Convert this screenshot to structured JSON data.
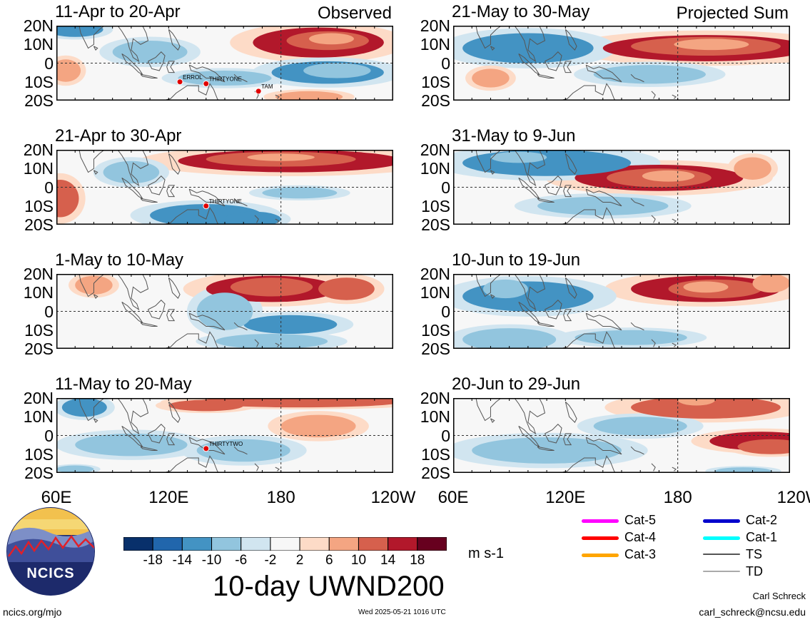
{
  "panels": [
    {
      "title": "11-Apr to 20-Apr",
      "tag": "Observed",
      "storms": [
        {
          "name": "ERROL",
          "lon": 126,
          "lat": -10
        },
        {
          "name": "THIRTYONE",
          "lon": 140,
          "lat": -11
        },
        {
          "name": "TAM",
          "lon": 168,
          "lat": -15
        }
      ]
    },
    {
      "title": "21-Apr to 30-Apr",
      "tag": "",
      "storms": [
        {
          "name": "THIRTYONE",
          "lon": 140,
          "lat": -10
        }
      ]
    },
    {
      "title": "1-May to 10-May",
      "tag": "",
      "storms": []
    },
    {
      "title": "11-May to 20-May",
      "tag": "",
      "storms": [
        {
          "name": "THIRTYTWO",
          "lon": 140,
          "lat": -7
        }
      ]
    },
    {
      "title": "21-May to 30-May",
      "tag": "Projected Sum",
      "storms": []
    },
    {
      "title": "31-May to 9-Jun",
      "tag": "",
      "storms": []
    },
    {
      "title": "10-Jun to 19-Jun",
      "tag": "",
      "storms": []
    },
    {
      "title": "20-Jun to 29-Jun",
      "tag": "",
      "storms": []
    }
  ],
  "lat_labels": [
    "20N",
    "10N",
    "0",
    "10S",
    "20S"
  ],
  "lon_labels": [
    "60E",
    "120E",
    "180",
    "120W"
  ],
  "colorbar": {
    "colors": [
      "#08306b",
      "#2166ac",
      "#4393c3",
      "#92c5de",
      "#d1e5f0",
      "#f7f7f7",
      "#fddbc7",
      "#f4a582",
      "#d6604d",
      "#b2182b",
      "#67001f"
    ],
    "tick_labels": [
      "-18",
      "-14",
      "-10",
      "-6",
      "-2",
      "2",
      "6",
      "10",
      "14",
      "18"
    ],
    "units": "m s-1"
  },
  "main_title": "10-day UWND200",
  "logo": {
    "text": "NCICS"
  },
  "legend": [
    {
      "label": "Cat-5",
      "color": "#ff00ff"
    },
    {
      "label": "Cat-4",
      "color": "#ff0000"
    },
    {
      "label": "Cat-3",
      "color": "#ffa500"
    },
    {
      "label": "Cat-2",
      "color": "#0000cc"
    },
    {
      "label": "Cat-1",
      "color": "#00ffff"
    },
    {
      "label": "TS",
      "color": "#555555"
    },
    {
      "label": "TD",
      "color": "#aaaaaa"
    }
  ],
  "footer": {
    "left": "ncics.org/mjo",
    "center": "Wed 2025-05-21 1016 UTC",
    "author": "Carl Schreck",
    "email": "carl_schreck@ncsu.edu"
  },
  "fields": [
    [
      {
        "lon": 200,
        "lat": 11,
        "r": 3,
        "rx": 35,
        "ry": 8
      },
      {
        "lon": 205,
        "lat": 12,
        "r": 2,
        "rx": 22,
        "ry": 5
      },
      {
        "lon": 207,
        "lat": 13,
        "r": 1,
        "rx": 12,
        "ry": 3
      },
      {
        "lon": 205,
        "lat": -5,
        "r": -2,
        "rx": 30,
        "ry": 6
      },
      {
        "lon": 210,
        "lat": -4,
        "r": -1,
        "rx": 18,
        "ry": 4
      },
      {
        "lon": 70,
        "lat": 18,
        "r": -2,
        "rx": 15,
        "ry": 4
      },
      {
        "lon": 110,
        "lat": 6,
        "r": -1,
        "rx": 20,
        "ry": 6
      },
      {
        "lon": 150,
        "lat": -8,
        "r": -1,
        "rx": 25,
        "ry": 4
      },
      {
        "lon": 65,
        "lat": -4,
        "r": 1,
        "rx": 8,
        "ry": 6
      },
      {
        "lon": 195,
        "lat": -18,
        "r": 1,
        "rx": 18,
        "ry": 3
      }
    ],
    [
      {
        "lon": 185,
        "lat": 14,
        "r": 3,
        "rx": 60,
        "ry": 6
      },
      {
        "lon": 180,
        "lat": 15,
        "r": 2,
        "rx": 40,
        "ry": 4
      },
      {
        "lon": 180,
        "lat": 16,
        "r": 1,
        "rx": 18,
        "ry": 2
      },
      {
        "lon": 62,
        "lat": -6,
        "r": 2,
        "rx": 10,
        "ry": 10
      },
      {
        "lon": 140,
        "lat": -15,
        "r": -2,
        "rx": 30,
        "ry": 6
      },
      {
        "lon": 165,
        "lat": -17,
        "r": -2,
        "rx": 15,
        "ry": 4
      },
      {
        "lon": 190,
        "lat": -3,
        "r": -1,
        "rx": 20,
        "ry": 3
      },
      {
        "lon": 100,
        "lat": 8,
        "r": -1,
        "rx": 15,
        "ry": 6
      }
    ],
    [
      {
        "lon": 175,
        "lat": 12,
        "r": 3,
        "rx": 35,
        "ry": 7
      },
      {
        "lon": 215,
        "lat": 12,
        "r": 2,
        "rx": 15,
        "ry": 6
      },
      {
        "lon": 175,
        "lat": 13,
        "r": 2,
        "rx": 22,
        "ry": 5
      },
      {
        "lon": 185,
        "lat": -7,
        "r": -2,
        "rx": 25,
        "ry": 5
      },
      {
        "lon": 175,
        "lat": -16,
        "r": -1,
        "rx": 30,
        "ry": 4
      },
      {
        "lon": 150,
        "lat": 0,
        "r": -1,
        "rx": 15,
        "ry": 10
      },
      {
        "lon": 80,
        "lat": 14,
        "r": 1,
        "rx": 10,
        "ry": 5
      }
    ],
    [
      {
        "lon": 190,
        "lat": 18,
        "r": 2,
        "rx": 55,
        "ry": 3
      },
      {
        "lon": 140,
        "lat": 16,
        "r": 2,
        "rx": 20,
        "ry": 3
      },
      {
        "lon": 75,
        "lat": 15,
        "r": -2,
        "rx": 12,
        "ry": 5
      },
      {
        "lon": 100,
        "lat": -5,
        "r": -1,
        "rx": 30,
        "ry": 6
      },
      {
        "lon": 160,
        "lat": -8,
        "r": -1,
        "rx": 25,
        "ry": 6
      },
      {
        "lon": 200,
        "lat": 5,
        "r": 1,
        "rx": 20,
        "ry": 6
      },
      {
        "lon": 70,
        "lat": -18,
        "r": -1,
        "rx": 10,
        "ry": 2
      }
    ],
    [
      {
        "lon": 195,
        "lat": 8,
        "r": 3,
        "rx": 55,
        "ry": 7
      },
      {
        "lon": 195,
        "lat": 9,
        "r": 2,
        "rx": 40,
        "ry": 5
      },
      {
        "lon": 198,
        "lat": 10,
        "r": 1,
        "rx": 20,
        "ry": 3
      },
      {
        "lon": 100,
        "lat": 8,
        "r": -2,
        "rx": 35,
        "ry": 8
      },
      {
        "lon": 165,
        "lat": -6,
        "r": -1,
        "rx": 30,
        "ry": 5
      },
      {
        "lon": 80,
        "lat": -8,
        "r": 1,
        "rx": 10,
        "ry": 5
      }
    ],
    [
      {
        "lon": 170,
        "lat": 5,
        "r": 3,
        "rx": 45,
        "ry": 7
      },
      {
        "lon": 170,
        "lat": 5,
        "r": 2,
        "rx": 28,
        "ry": 5
      },
      {
        "lon": 175,
        "lat": 6,
        "r": 1,
        "rx": 14,
        "ry": 3
      },
      {
        "lon": 110,
        "lat": 13,
        "r": -2,
        "rx": 45,
        "ry": 7
      },
      {
        "lon": 95,
        "lat": 16,
        "r": -1,
        "rx": 15,
        "ry": 3
      },
      {
        "lon": 140,
        "lat": -10,
        "r": -1,
        "rx": 35,
        "ry": 5
      },
      {
        "lon": 220,
        "lat": 10,
        "r": 1,
        "rx": 10,
        "ry": 6
      }
    ],
    [
      {
        "lon": 195,
        "lat": 12,
        "r": 3,
        "rx": 40,
        "ry": 7
      },
      {
        "lon": 200,
        "lat": 12,
        "r": 2,
        "rx": 25,
        "ry": 5
      },
      {
        "lon": 195,
        "lat": 13,
        "r": 1,
        "rx": 12,
        "ry": 3
      },
      {
        "lon": 100,
        "lat": 8,
        "r": -2,
        "rx": 35,
        "ry": 8
      },
      {
        "lon": 88,
        "lat": 12,
        "r": -1,
        "rx": 12,
        "ry": 5
      },
      {
        "lon": 90,
        "lat": -15,
        "r": -1,
        "rx": 25,
        "ry": 6
      },
      {
        "lon": 155,
        "lat": -14,
        "r": -1,
        "rx": 30,
        "ry": 4
      },
      {
        "lon": 230,
        "lat": 15,
        "r": 1,
        "rx": 10,
        "ry": 5
      }
    ],
    [
      {
        "lon": 195,
        "lat": 15,
        "r": 2,
        "rx": 40,
        "ry": 6
      },
      {
        "lon": 190,
        "lat": 19,
        "r": 1,
        "rx": 10,
        "ry": 3
      },
      {
        "lon": 225,
        "lat": -3,
        "r": 3,
        "rx": 28,
        "ry": 5
      },
      {
        "lon": 230,
        "lat": -6,
        "r": 2,
        "rx": 18,
        "ry": 4
      },
      {
        "lon": 110,
        "lat": -8,
        "r": -1,
        "rx": 40,
        "ry": 7
      },
      {
        "lon": 160,
        "lat": 5,
        "r": -1,
        "rx": 25,
        "ry": 5
      },
      {
        "lon": 215,
        "lat": -19,
        "r": -1,
        "rx": 15,
        "ry": 2
      }
    ]
  ]
}
